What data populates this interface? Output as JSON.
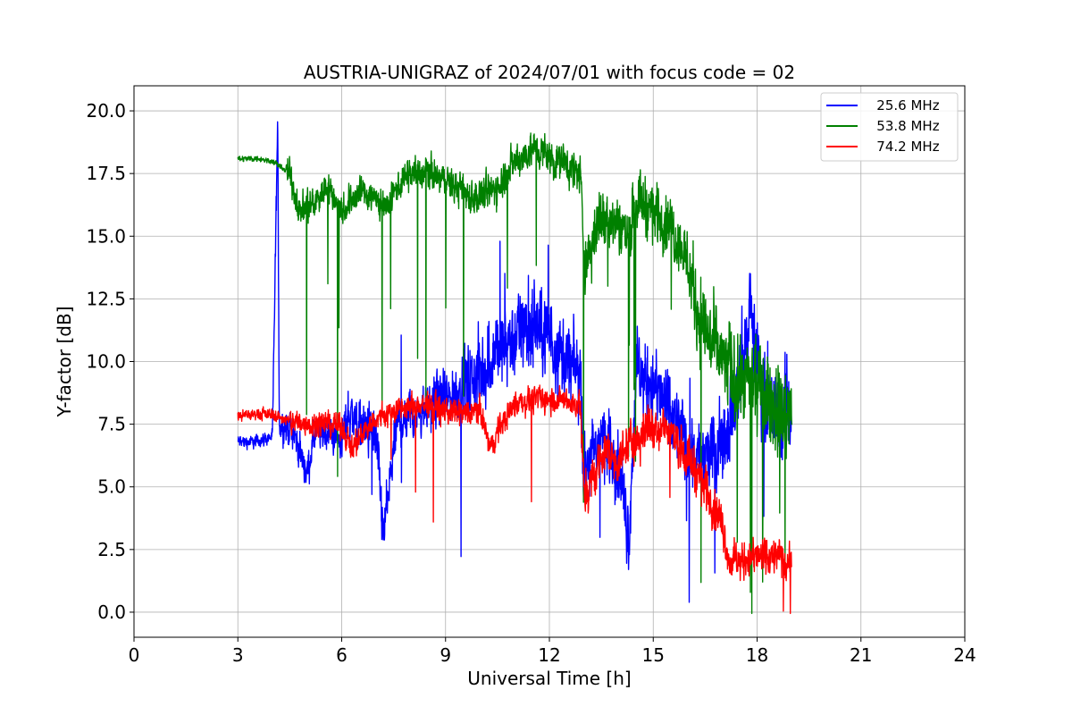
{
  "chart_data": {
    "type": "line",
    "title": "AUSTRIA-UNIGRAZ of 2024/07/01 with focus code = 02",
    "xlabel": "Universal Time [h]",
    "ylabel": "Y-factor [dB]",
    "xlim": [
      0,
      24
    ],
    "ylim": [
      -1.0,
      21.0
    ],
    "xticks": [
      0,
      3,
      6,
      9,
      12,
      15,
      18,
      21,
      24
    ],
    "xtick_labels": [
      "0",
      "3",
      "6",
      "9",
      "12",
      "15",
      "18",
      "21",
      "24"
    ],
    "yticks": [
      0,
      2.5,
      5,
      7.5,
      10,
      12.5,
      15,
      17.5,
      20
    ],
    "ytick_labels": [
      "0.0",
      "2.5",
      "5.0",
      "7.5",
      "10.0",
      "12.5",
      "15.0",
      "17.5",
      "20.0"
    ],
    "grid": true,
    "legend_position": "top-right",
    "series": [
      {
        "name": "25.6 MHz",
        "legend_label": "   25.6 MHz",
        "color": "#0000ff",
        "x": [
          3.0,
          3.5,
          4.0,
          4.15,
          4.2,
          4.3,
          4.6,
          5.0,
          5.2,
          5.6,
          6.0,
          6.2,
          6.5,
          7.0,
          7.2,
          7.6,
          8.0,
          8.5,
          9.0,
          9.5,
          10.0,
          10.5,
          11.0,
          11.5,
          12.0,
          12.5,
          12.9,
          13.0,
          13.5,
          14.0,
          14.3,
          14.5,
          15.0,
          15.5,
          16.0,
          16.5,
          17.0,
          17.5,
          17.8,
          18.0,
          18.3,
          18.6,
          19.0
        ],
        "y": [
          6.8,
          6.8,
          7.0,
          19.5,
          7.5,
          7.4,
          7.2,
          5.5,
          7.0,
          7.2,
          6.8,
          8.0,
          7.5,
          7.0,
          3.0,
          7.5,
          8.0,
          8.2,
          8.5,
          9.0,
          9.5,
          10.5,
          11.0,
          11.5,
          11.0,
          10.0,
          9.5,
          5.5,
          7.0,
          6.0,
          3.0,
          9.5,
          9.0,
          8.0,
          6.5,
          6.0,
          7.0,
          9.0,
          12.0,
          10.0,
          8.5,
          7.5,
          8.5
        ]
      },
      {
        "name": "53.8 MHz",
        "legend_label": "   53.8 MHz",
        "color": "#008000",
        "x": [
          3.0,
          3.5,
          4.0,
          4.5,
          4.8,
          5.0,
          5.3,
          5.6,
          6.0,
          6.3,
          6.6,
          7.0,
          7.3,
          7.6,
          8.0,
          8.5,
          9.0,
          9.5,
          10.0,
          10.5,
          11.0,
          11.5,
          12.0,
          12.5,
          12.9,
          13.0,
          13.3,
          13.6,
          14.0,
          14.3,
          14.5,
          14.8,
          15.0,
          15.5,
          16.0,
          16.3,
          16.6,
          17.0,
          17.3,
          17.6,
          18.0,
          18.3,
          18.6,
          19.0
        ],
        "y": [
          18.1,
          18.1,
          18.0,
          17.5,
          16.0,
          16.2,
          16.5,
          17.0,
          16.0,
          16.5,
          16.8,
          16.5,
          16.0,
          17.0,
          17.5,
          17.5,
          17.2,
          16.8,
          16.5,
          17.0,
          18.0,
          18.5,
          18.2,
          17.8,
          17.5,
          14.0,
          15.0,
          16.0,
          15.5,
          15.0,
          16.5,
          16.2,
          16.0,
          15.5,
          14.0,
          12.0,
          11.0,
          10.0,
          9.5,
          9.0,
          9.0,
          8.5,
          8.0,
          8.0
        ]
      },
      {
        "name": "74.2 MHz",
        "legend_label": "   74.2 MHz",
        "color": "#ff0000",
        "x": [
          3.0,
          3.5,
          4.0,
          4.5,
          5.0,
          5.5,
          6.0,
          6.3,
          6.6,
          7.0,
          7.5,
          8.0,
          8.5,
          9.0,
          9.5,
          10.0,
          10.3,
          10.6,
          11.0,
          11.5,
          12.0,
          12.5,
          12.9,
          13.0,
          13.3,
          13.6,
          14.0,
          14.3,
          14.6,
          15.0,
          15.5,
          16.0,
          16.5,
          17.0,
          17.2,
          17.5,
          18.0,
          18.5,
          19.0
        ],
        "y": [
          7.8,
          7.9,
          7.9,
          7.6,
          7.5,
          7.6,
          7.4,
          6.5,
          7.2,
          7.7,
          8.0,
          8.2,
          8.3,
          8.0,
          7.9,
          8.0,
          6.5,
          7.5,
          8.3,
          8.5,
          8.5,
          8.4,
          8.3,
          4.5,
          5.5,
          6.5,
          6.0,
          6.8,
          7.0,
          7.5,
          7.2,
          6.2,
          5.0,
          3.5,
          2.0,
          2.0,
          2.2,
          2.2,
          2.0
        ]
      }
    ]
  }
}
